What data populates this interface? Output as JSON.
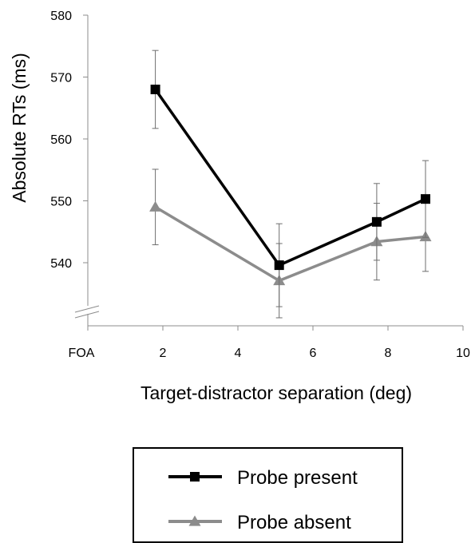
{
  "chart_data": {
    "type": "line",
    "title": "",
    "xlabel": "Target-distractor separation (deg)",
    "ylabel": "Absolute RTs (ms)",
    "xlim": [
      0,
      10
    ],
    "ylim": [
      530,
      580
    ],
    "x_tick_labels": [
      {
        "x": 0,
        "label": "FOA"
      },
      {
        "x": 2,
        "label": "2"
      },
      {
        "x": 4,
        "label": "4"
      },
      {
        "x": 6,
        "label": "6"
      },
      {
        "x": 8,
        "label": "8"
      },
      {
        "x": 10,
        "label": "10"
      }
    ],
    "y_ticks": [
      540,
      550,
      560,
      570,
      580
    ],
    "axis_break": true,
    "grid": false,
    "legend_position": "bottom",
    "series": [
      {
        "name": "Probe present",
        "color": "#000000",
        "marker": "square",
        "x": [
          1.8,
          5.1,
          7.7,
          9.0
        ],
        "y": [
          568.0,
          539.6,
          546.6,
          550.3
        ],
        "err": [
          6.3,
          6.7,
          6.2,
          6.2
        ]
      },
      {
        "name": "Probe absent",
        "color": "#8c8c8c",
        "marker": "triangle",
        "x": [
          1.8,
          5.1,
          7.7,
          9.0
        ],
        "y": [
          549.0,
          537.1,
          543.4,
          544.2
        ],
        "err": [
          6.1,
          6.0,
          6.2,
          5.6
        ]
      }
    ]
  }
}
